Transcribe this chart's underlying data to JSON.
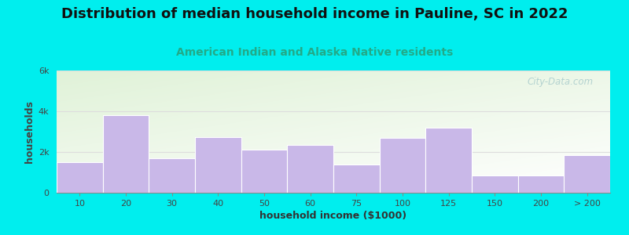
{
  "title": "Distribution of median household income in Pauline, SC in 2022",
  "subtitle": "American Indian and Alaska Native residents",
  "xlabel": "household income ($1000)",
  "ylabel": "households",
  "background_outer": "#00EEEE",
  "bar_color": "#c9b8e8",
  "bar_edge_color": "#ffffff",
  "categories": [
    "10",
    "20",
    "30",
    "40",
    "50",
    "60",
    "75",
    "100",
    "125",
    "150",
    "200",
    "> 200"
  ],
  "values": [
    1500,
    3800,
    1700,
    2750,
    2100,
    2350,
    1400,
    2700,
    3200,
    850,
    850,
    1850
  ],
  "ylim": [
    0,
    6000
  ],
  "yticks": [
    0,
    2000,
    4000,
    6000
  ],
  "ytick_labels": [
    "0",
    "2k",
    "4k",
    "6k"
  ],
  "title_fontsize": 13,
  "subtitle_fontsize": 10,
  "axis_label_fontsize": 9,
  "tick_fontsize": 8,
  "title_color": "#111111",
  "subtitle_color": "#22aa88",
  "watermark_color": "#aacccc",
  "grid_color": "#dddddd"
}
